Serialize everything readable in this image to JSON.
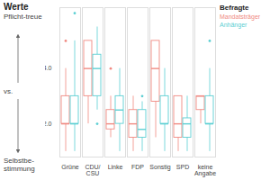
{
  "chart_data": {
    "type": "boxplot",
    "title": "Werte",
    "ylabel": {
      "top": "Pflicht-treue",
      "middle": "vs.",
      "bottom": "Selbstbe-stimmung"
    },
    "legend_title": "Befragte",
    "legend": "top-right",
    "categories": [
      "Grüne",
      "CDU/CSU",
      "Linke",
      "FDP",
      "Sonstig",
      "SPD",
      "keine Angabe"
    ],
    "series": [
      {
        "name": "Mandatsträger",
        "color": "#f08a82",
        "values": [
          {
            "min": 1,
            "q1": 2,
            "median": 2,
            "q3": 3,
            "max": 4,
            "outliers": [
              5
            ]
          },
          {
            "min": 2,
            "q1": 3,
            "median": 4,
            "q3": 5,
            "max": 5,
            "outliers": []
          },
          {
            "min": 1.5,
            "q1": 1.8,
            "median": 2,
            "q3": 2.5,
            "max": 3,
            "outliers": [
              4
            ]
          },
          {
            "min": 1,
            "q1": 1.5,
            "median": 2,
            "q3": 2.5,
            "max": 3,
            "outliers": []
          },
          {
            "min": 1.5,
            "q1": 2.8,
            "median": 4,
            "q3": 5,
            "max": 5,
            "outliers": []
          },
          {
            "min": 1,
            "q1": 1.5,
            "median": 2,
            "q3": 3,
            "max": 3,
            "outliers": []
          },
          {
            "min": 2,
            "q1": 2.5,
            "median": 3,
            "q3": 3,
            "max": 3,
            "outliers": []
          }
        ]
      },
      {
        "name": "Anhänger",
        "color": "#5ccfd3",
        "values": [
          {
            "min": 1,
            "q1": 2,
            "median": 2,
            "q3": 3,
            "max": 5,
            "outliers": [
              6
            ]
          },
          {
            "min": 2.5,
            "q1": 3,
            "median": 4,
            "q3": 4.5,
            "max": 5.5,
            "outliers": [
              2
            ]
          },
          {
            "min": 1,
            "q1": 2,
            "median": 2.5,
            "q3": 3,
            "max": 4,
            "outliers": []
          },
          {
            "min": 1,
            "q1": 1.5,
            "median": 1.8,
            "q3": 2.5,
            "max": 2.8,
            "outliers": [
              3
            ]
          },
          {
            "min": 1,
            "q1": 2,
            "median": 2,
            "q3": 3,
            "max": 4,
            "outliers": []
          },
          {
            "min": 1,
            "q1": 1.5,
            "median": 2,
            "q3": 2.2,
            "max": 3,
            "outliers": []
          },
          {
            "min": 1,
            "q1": 2,
            "median": 2,
            "q3": 3,
            "max": 4,
            "outliers": [
              5
            ]
          }
        ]
      }
    ],
    "ylim": [
      0.8,
      6.2
    ],
    "yticks": [
      2,
      4
    ],
    "grid": false
  }
}
